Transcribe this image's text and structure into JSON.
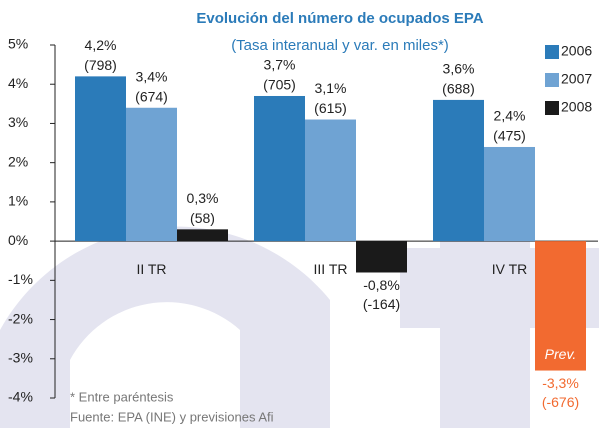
{
  "chart_data": {
    "type": "bar",
    "title": "Evolución del número de ocupados EPA",
    "subtitle": "(Tasa interanual y var. en miles*)",
    "categories": [
      "II TR",
      "III TR",
      "IV TR"
    ],
    "series": [
      {
        "name": "2006",
        "color": "#2b7bb9",
        "values": [
          4.2,
          3.7,
          3.6
        ],
        "value_labels": [
          "4,2%",
          "3,7%",
          "3,6%"
        ],
        "count_labels": [
          "(798)",
          "(705)",
          "(688)"
        ]
      },
      {
        "name": "2007",
        "color": "#6fa3d3",
        "values": [
          3.4,
          3.1,
          2.4
        ],
        "value_labels": [
          "3,4%",
          "3,1%",
          "2,4%"
        ],
        "count_labels": [
          "(674)",
          "(615)",
          "(475)"
        ]
      },
      {
        "name": "2008",
        "color": "#1a1a1a",
        "values": [
          0.3,
          -0.8,
          -3.3
        ],
        "value_labels": [
          "0,3%",
          "-0,8%",
          "-3,3%"
        ],
        "count_labels": [
          "(58)",
          "(-164)",
          "(-676)"
        ]
      }
    ],
    "highlight": {
      "series": 2,
      "index": 2,
      "color": "#f26a30",
      "label": "Prev."
    },
    "ylim": [
      -4,
      5
    ],
    "yticks": [
      {
        "value": -4,
        "label": "-4%"
      },
      {
        "value": -3,
        "label": "-3%"
      },
      {
        "value": -2,
        "label": "-2%"
      },
      {
        "value": -1,
        "label": "-1%"
      },
      {
        "value": 0,
        "label": "0%"
      },
      {
        "value": 1,
        "label": "1%"
      },
      {
        "value": 2,
        "label": "2%"
      },
      {
        "value": 3,
        "label": "3%"
      },
      {
        "value": 4,
        "label": "4%"
      },
      {
        "value": 5,
        "label": "5%"
      }
    ],
    "legend": "right",
    "notes": [
      "* Entre paréntesis",
      "Fuente: EPA (INE) y previsiones Afi"
    ]
  }
}
